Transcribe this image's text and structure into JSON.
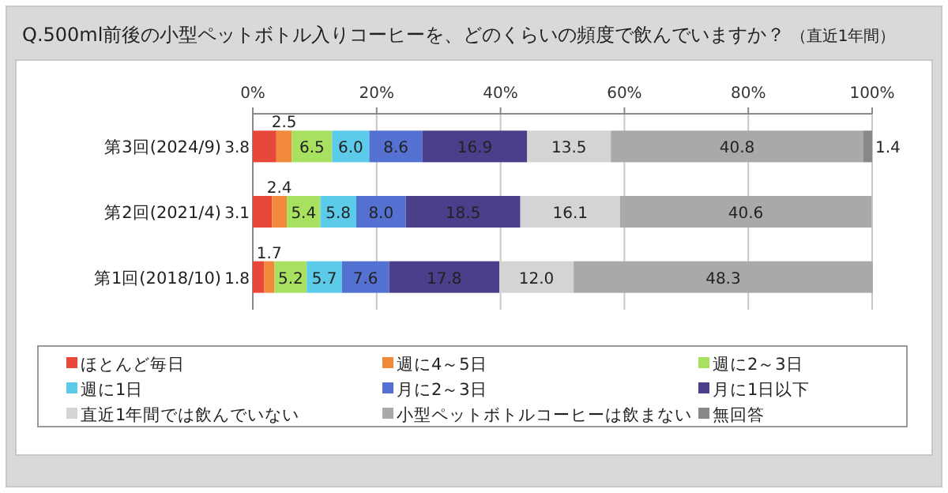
{
  "chart_data": {
    "type": "bar",
    "orientation": "horizontal",
    "stacked": true,
    "title": "Q.500ml前後の小型ペットボトル入りコーヒーを、どのくらいの頻度で飲んでいますか？",
    "subtitle": "（直近1年間）",
    "categories": [
      "第3回(2024/9)",
      "第2回(2021/4)",
      "第1回(2018/10)"
    ],
    "series": [
      {
        "name": "ほとんど毎日",
        "color": "#e8483a",
        "values": [
          3.8,
          3.1,
          1.8
        ],
        "value_labels": [
          "3.8",
          "3.1",
          "1.8"
        ]
      },
      {
        "name": "週に4～5日",
        "color": "#f08a3a",
        "values": [
          2.5,
          2.4,
          1.7
        ],
        "value_labels": [
          "2.5",
          "2.4",
          "1.7"
        ]
      },
      {
        "name": "週に2～3日",
        "color": "#a8e060",
        "values": [
          6.5,
          5.4,
          5.2
        ],
        "value_labels": [
          "6.5",
          "5.4",
          "5.2"
        ]
      },
      {
        "name": "週に1日",
        "color": "#5ccbea",
        "values": [
          6.0,
          5.8,
          5.7
        ],
        "value_labels": [
          "6.0",
          "5.8",
          "5.7"
        ]
      },
      {
        "name": "月に2～3日",
        "color": "#5470d0",
        "values": [
          8.6,
          8.0,
          7.6
        ],
        "value_labels": [
          "8.6",
          "8.0",
          "7.6"
        ]
      },
      {
        "name": "月に1日以下",
        "color": "#4a3f8a",
        "values": [
          16.9,
          18.5,
          17.8
        ],
        "value_labels": [
          "16.9",
          "18.5",
          "17.8"
        ]
      },
      {
        "name": "直近1年間では飲んでいない",
        "color": "#d4d4d4",
        "values": [
          13.5,
          16.1,
          12.0
        ],
        "value_labels": [
          "13.5",
          "16.1",
          "12.0"
        ]
      },
      {
        "name": "小型ペットボトルコーヒーは飲まない",
        "color": "#a9a9a9",
        "values": [
          40.8,
          40.6,
          48.3
        ],
        "value_labels": [
          "40.8",
          "40.6",
          "48.3"
        ]
      },
      {
        "name": "無回答",
        "color": "#888888",
        "values": [
          1.4,
          null,
          null
        ],
        "value_labels": [
          "1.4",
          null,
          null
        ]
      }
    ],
    "xlim": [
      0,
      100
    ],
    "xticks": [
      {
        "value": 0,
        "label": "0%"
      },
      {
        "value": 20,
        "label": "20%"
      },
      {
        "value": 40,
        "label": "40%"
      },
      {
        "value": 60,
        "label": "60%"
      },
      {
        "value": 80,
        "label": "80%"
      },
      {
        "value": 100,
        "label": "100%"
      }
    ],
    "grid": "x",
    "legend": "bottom"
  }
}
